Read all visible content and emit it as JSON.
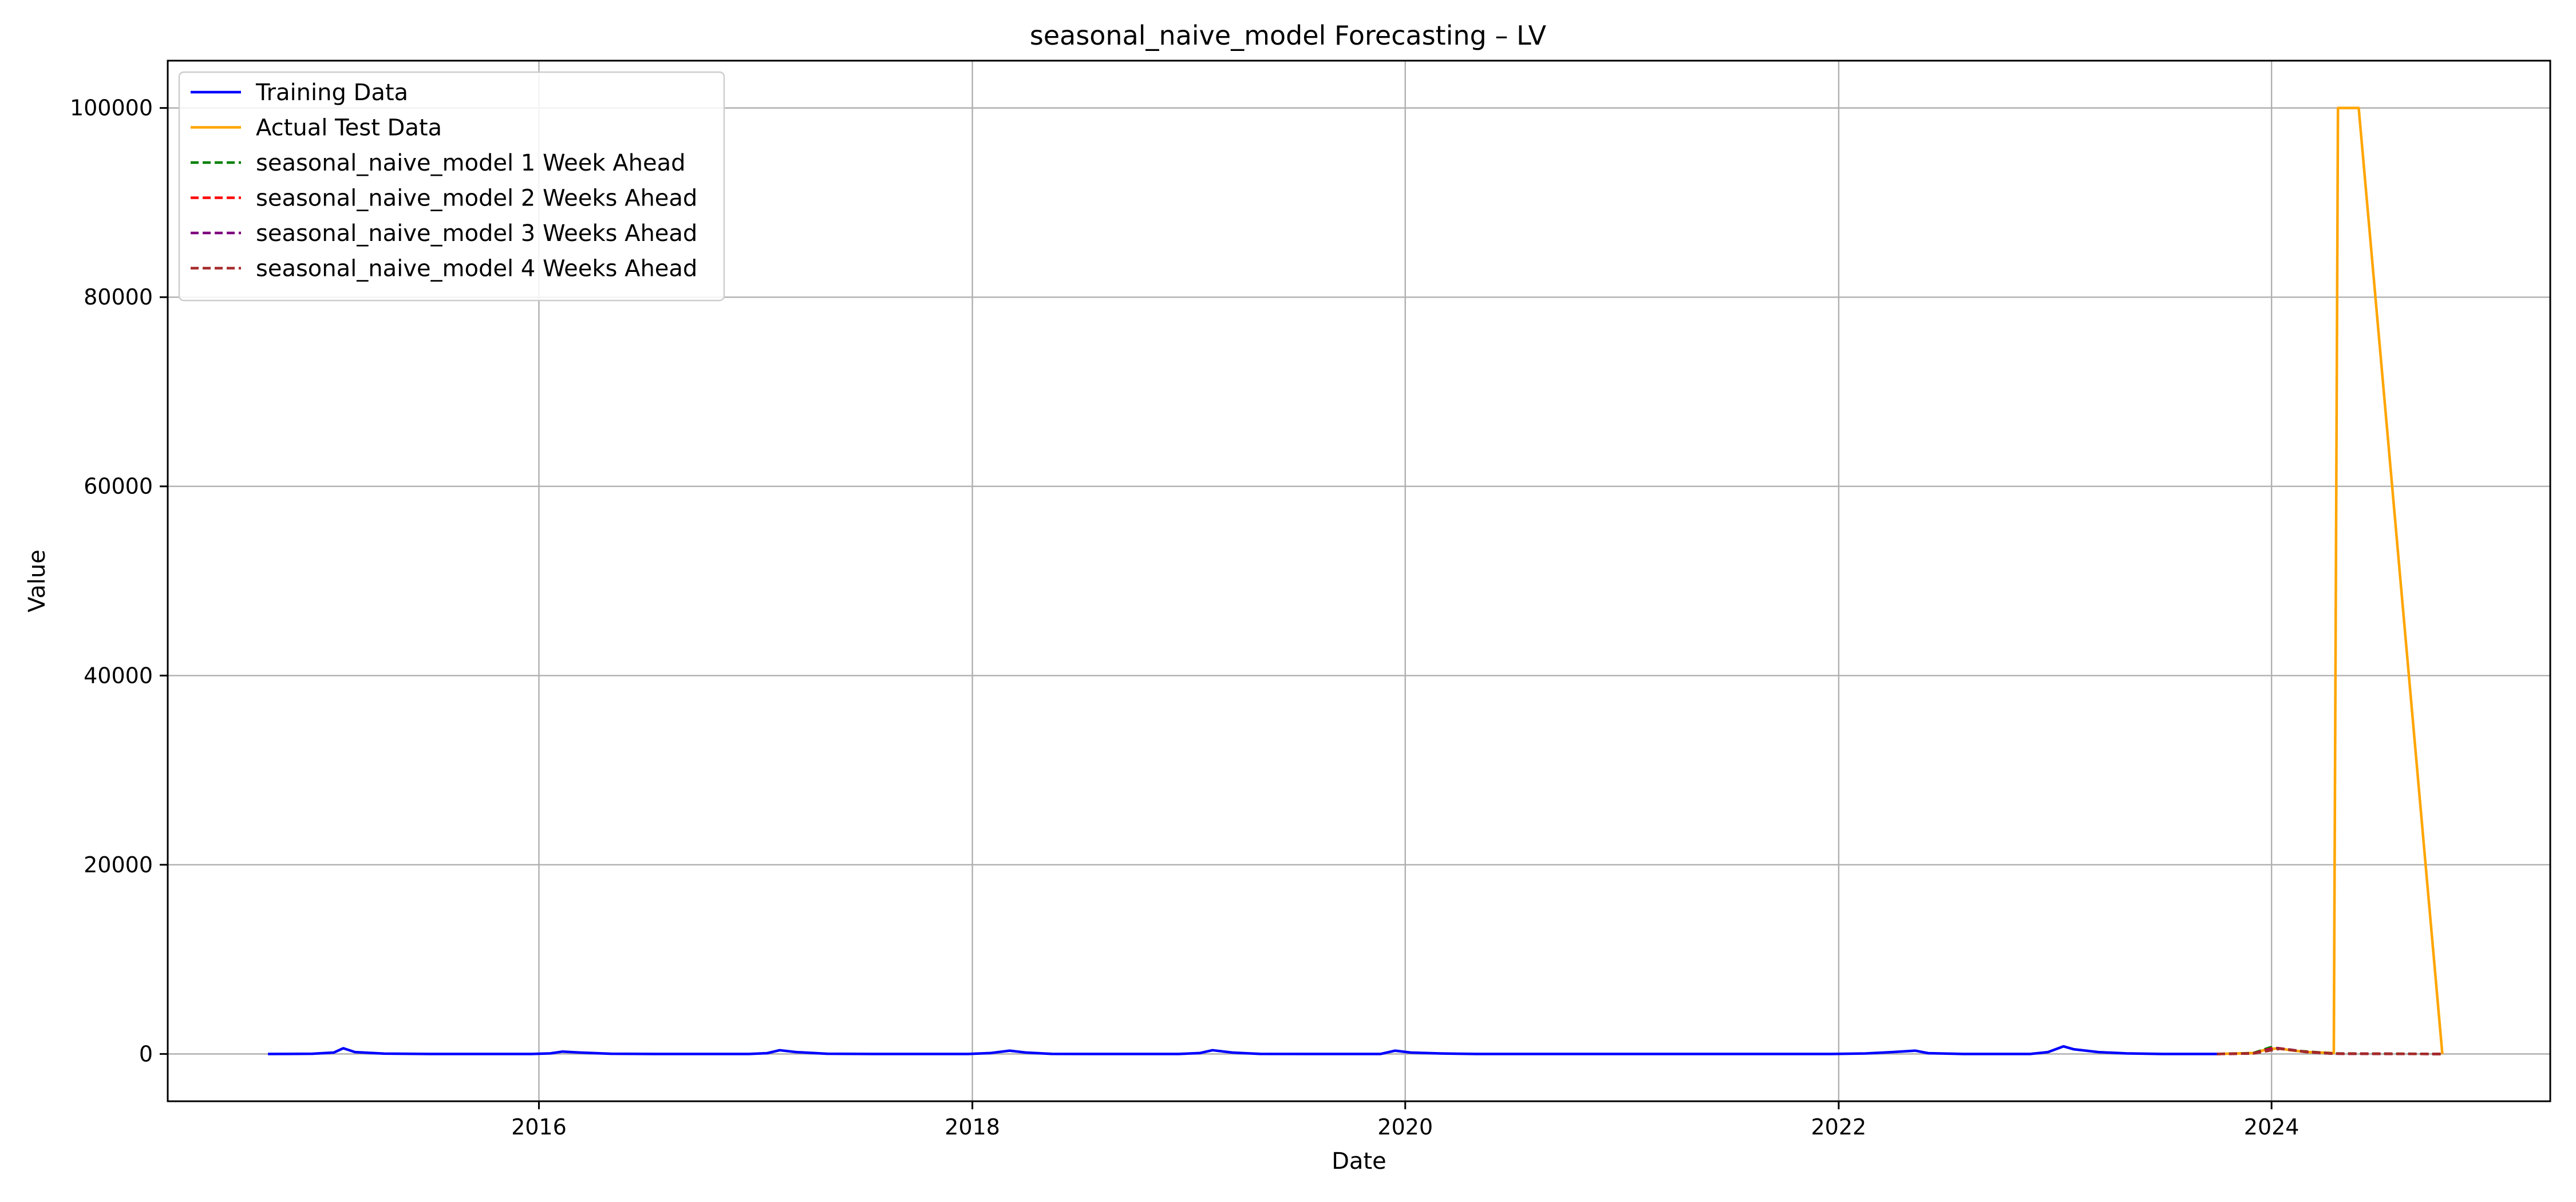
{
  "chart_data": {
    "type": "line",
    "title": "seasonal_naive_model Forecasting – LV",
    "xlabel": "Date",
    "ylabel": "Value",
    "x_axis_type": "date",
    "xlim": [
      "2014-04-15",
      "2025-04-15"
    ],
    "ylim": [
      -5000,
      105000
    ],
    "grid": true,
    "legend_position": "top-left",
    "x_ticks": [
      {
        "label": "2016",
        "value": "2016-01-01"
      },
      {
        "label": "2018",
        "value": "2018-01-01"
      },
      {
        "label": "2020",
        "value": "2020-01-01"
      },
      {
        "label": "2022",
        "value": "2022-01-01"
      },
      {
        "label": "2024",
        "value": "2024-01-01"
      }
    ],
    "y_ticks": [
      {
        "label": "0",
        "value": 0
      },
      {
        "label": "20000",
        "value": 20000
      },
      {
        "label": "40000",
        "value": 40000
      },
      {
        "label": "60000",
        "value": 60000
      },
      {
        "label": "80000",
        "value": 80000
      },
      {
        "label": "100000",
        "value": 100000
      }
    ],
    "series": [
      {
        "name": "Training Data",
        "color": "#0000ff",
        "dash": "solid",
        "points": [
          [
            "2014-10-01",
            0
          ],
          [
            "2014-12-15",
            20
          ],
          [
            "2015-01-20",
            150
          ],
          [
            "2015-02-05",
            600
          ],
          [
            "2015-02-25",
            200
          ],
          [
            "2015-04-15",
            40
          ],
          [
            "2015-07-01",
            0
          ],
          [
            "2015-12-20",
            0
          ],
          [
            "2016-01-20",
            60
          ],
          [
            "2016-02-10",
            250
          ],
          [
            "2016-03-10",
            150
          ],
          [
            "2016-05-01",
            20
          ],
          [
            "2016-08-01",
            0
          ],
          [
            "2016-12-20",
            0
          ],
          [
            "2017-01-20",
            80
          ],
          [
            "2017-02-10",
            400
          ],
          [
            "2017-03-10",
            200
          ],
          [
            "2017-05-01",
            20
          ],
          [
            "2017-08-01",
            0
          ],
          [
            "2017-12-25",
            0
          ],
          [
            "2018-02-01",
            100
          ],
          [
            "2018-03-05",
            350
          ],
          [
            "2018-04-01",
            150
          ],
          [
            "2018-05-15",
            10
          ],
          [
            "2018-08-01",
            0
          ],
          [
            "2018-12-15",
            0
          ],
          [
            "2019-01-20",
            100
          ],
          [
            "2019-02-10",
            400
          ],
          [
            "2019-03-15",
            150
          ],
          [
            "2019-05-01",
            10
          ],
          [
            "2019-08-01",
            0
          ],
          [
            "2019-11-20",
            0
          ],
          [
            "2019-12-15",
            350
          ],
          [
            "2020-01-10",
            150
          ],
          [
            "2020-03-01",
            50
          ],
          [
            "2020-05-01",
            0
          ],
          [
            "2021-12-20",
            0
          ],
          [
            "2022-02-15",
            50
          ],
          [
            "2022-04-01",
            200
          ],
          [
            "2022-05-10",
            350
          ],
          [
            "2022-06-01",
            80
          ],
          [
            "2022-08-01",
            0
          ],
          [
            "2022-11-20",
            0
          ],
          [
            "2022-12-20",
            200
          ],
          [
            "2023-01-15",
            800
          ],
          [
            "2023-02-01",
            500
          ],
          [
            "2023-03-15",
            200
          ],
          [
            "2023-05-01",
            60
          ],
          [
            "2023-07-01",
            0
          ],
          [
            "2023-10-01",
            0
          ]
        ]
      },
      {
        "name": "Actual Test Data",
        "color": "#ffa500",
        "dash": "solid",
        "points": [
          [
            "2023-10-01",
            0
          ],
          [
            "2023-12-01",
            100
          ],
          [
            "2023-12-25",
            500
          ],
          [
            "2024-01-15",
            600
          ],
          [
            "2024-02-01",
            400
          ],
          [
            "2024-03-01",
            200
          ],
          [
            "2024-04-15",
            100
          ],
          [
            "2024-04-22",
            100000
          ],
          [
            "2024-05-27",
            100000
          ],
          [
            "2024-10-15",
            0
          ]
        ]
      },
      {
        "name": "seasonal_naive_model 1 Week Ahead",
        "color": "#008000",
        "dash": "dashed",
        "points": [
          [
            "2023-10-01",
            0
          ],
          [
            "2023-12-01",
            80
          ],
          [
            "2023-12-30",
            700
          ],
          [
            "2024-01-20",
            550
          ],
          [
            "2024-02-20",
            300
          ],
          [
            "2024-04-15",
            50
          ],
          [
            "2024-10-15",
            0
          ]
        ]
      },
      {
        "name": "seasonal_naive_model 2 Weeks Ahead",
        "color": "#ff0000",
        "dash": "dashed",
        "points": [
          [
            "2023-10-01",
            0
          ],
          [
            "2023-12-01",
            60
          ],
          [
            "2024-01-05",
            650
          ],
          [
            "2024-01-25",
            500
          ],
          [
            "2024-02-25",
            250
          ],
          [
            "2024-04-15",
            40
          ],
          [
            "2024-10-15",
            0
          ]
        ]
      },
      {
        "name": "seasonal_naive_model 3 Weeks Ahead",
        "color": "#800080",
        "dash": "dashed",
        "points": [
          [
            "2023-10-01",
            0
          ],
          [
            "2023-12-01",
            60
          ],
          [
            "2024-01-10",
            600
          ],
          [
            "2024-02-01",
            450
          ],
          [
            "2024-03-01",
            200
          ],
          [
            "2024-04-15",
            30
          ],
          [
            "2024-10-15",
            0
          ]
        ]
      },
      {
        "name": "seasonal_naive_model 4 Weeks Ahead",
        "color": "#a52a2a",
        "dash": "dashed",
        "points": [
          [
            "2023-10-01",
            0
          ],
          [
            "2023-12-01",
            50
          ],
          [
            "2024-01-15",
            550
          ],
          [
            "2024-02-05",
            400
          ],
          [
            "2024-03-05",
            180
          ],
          [
            "2024-04-15",
            30
          ],
          [
            "2024-10-15",
            0
          ]
        ]
      }
    ]
  }
}
